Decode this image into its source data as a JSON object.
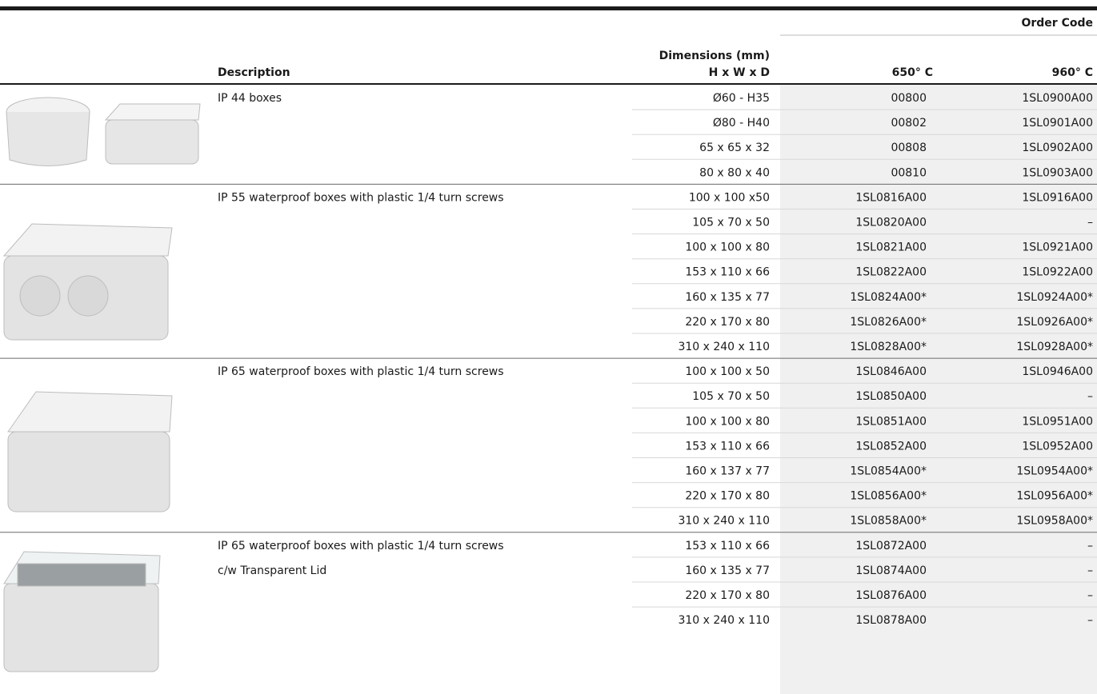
{
  "header": {
    "order_code": "Order Code",
    "description": "Description",
    "dimensions": "Dimensions (mm)",
    "hwd": "H x W x D",
    "col_650": "650° C",
    "col_960": "960° C"
  },
  "groups": [
    {
      "description": [
        "IP 44 boxes"
      ],
      "rows": [
        [
          "Ø60 - H35",
          "00800",
          "1SL0900A00"
        ],
        [
          "Ø80 - H40",
          "00802",
          "1SL0901A00"
        ],
        [
          "65 x 65 x 32",
          "00808",
          "1SL0902A00"
        ],
        [
          "80 x 80 x 40",
          "00810",
          "1SL0903A00"
        ]
      ]
    },
    {
      "description": [
        "IP 55 waterproof boxes with plastic 1/4 turn screws"
      ],
      "rows": [
        [
          "100 x 100 x50",
          "1SL0816A00",
          "1SL0916A00"
        ],
        [
          "105 x 70 x 50",
          "1SL0820A00",
          "–"
        ],
        [
          "100 x 100 x 80",
          "1SL0821A00",
          "1SL0921A00"
        ],
        [
          "153 x 110 x 66",
          "1SL0822A00",
          "1SL0922A00"
        ],
        [
          "160 x 135 x 77",
          "1SL0824A00*",
          "1SL0924A00*"
        ],
        [
          "220 x 170 x 80",
          "1SL0826A00*",
          "1SL0926A00*"
        ],
        [
          "310 x 240 x 110",
          "1SL0828A00*",
          "1SL0928A00*"
        ]
      ]
    },
    {
      "description": [
        "IP 65 waterproof boxes with plastic 1/4 turn screws"
      ],
      "rows": [
        [
          "100 x 100 x 50",
          "1SL0846A00",
          "1SL0946A00"
        ],
        [
          "105 x 70 x 50",
          "1SL0850A00",
          "–"
        ],
        [
          "100 x 100 x 80",
          "1SL0851A00",
          "1SL0951A00"
        ],
        [
          "153 x 110 x 66",
          "1SL0852A00",
          "1SL0952A00"
        ],
        [
          "160 x 137 x 77",
          "1SL0854A00*",
          "1SL0954A00*"
        ],
        [
          "220 x 170 x 80",
          "1SL0856A00*",
          "1SL0956A00*"
        ],
        [
          "310 x 240 x 110",
          "1SL0858A00*",
          "1SL0958A00*"
        ]
      ]
    },
    {
      "description": [
        "IP 65 waterproof boxes with plastic 1/4 turn screws",
        "c/w Transparent Lid"
      ],
      "rows": [
        [
          "153 x 110 x 66",
          "1SL0872A00",
          "–"
        ],
        [
          "160 x 135 x 77",
          "1SL0874A00",
          "–"
        ],
        [
          "220 x 170 x 80",
          "1SL0876A00",
          "–"
        ],
        [
          "310 x 240 x 110",
          "1SL0878A00",
          "–"
        ]
      ]
    }
  ]
}
